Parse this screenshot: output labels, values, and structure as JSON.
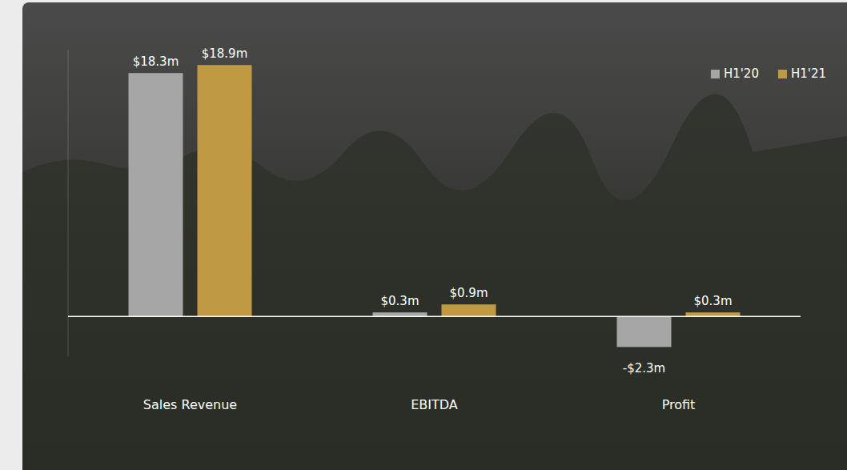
{
  "chart_data": {
    "type": "bar",
    "categories": [
      "Sales Revenue",
      "EBITDA",
      "Profit"
    ],
    "series": [
      {
        "name": "H1'20",
        "color": "#a6a6a6",
        "values": [
          18.3,
          0.3,
          -2.3
        ],
        "value_labels": [
          "$18.3m",
          "$0.3m",
          "-$2.3m"
        ]
      },
      {
        "name": "H1'21",
        "color": "#c09a42",
        "values": [
          18.9,
          0.9,
          0.3
        ],
        "value_labels": [
          "$18.9m",
          "$0.9m",
          "$0.3m"
        ]
      }
    ],
    "ylim": [
      -3,
      20
    ],
    "data_labels": true,
    "legend": "top-right",
    "tick_labels": "x",
    "grid": false
  }
}
